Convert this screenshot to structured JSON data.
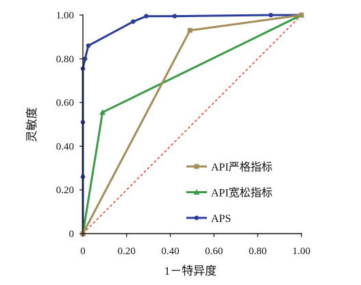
{
  "chart_data": {
    "type": "line",
    "xlabel": "1－特异度",
    "ylabel": "灵敏度",
    "xlim": [
      0,
      1
    ],
    "ylim": [
      0,
      1
    ],
    "x_tick_labels": [
      "0",
      "0.20",
      "0.40",
      "0.60",
      "0.80",
      "1.00"
    ],
    "y_tick_labels": [
      "0",
      "0.20",
      "0.40",
      "0.60",
      "0.80",
      "1.00"
    ],
    "grid": false,
    "legend_position": "bottom-right",
    "reference_line": {
      "x": [
        0,
        1
      ],
      "y": [
        0,
        1
      ],
      "style": "dashed",
      "color": "#e2513f"
    },
    "series": [
      {
        "name": "API严格指标",
        "color": "#a38d58",
        "marker": "square",
        "x": [
          0,
          0.49,
          1.0
        ],
        "y": [
          0,
          0.93,
          1.0
        ]
      },
      {
        "name": "API宽松指标",
        "color": "#3a9a45",
        "marker": "triangle",
        "x": [
          0,
          0.09,
          1.0
        ],
        "y": [
          0,
          0.555,
          1.0
        ]
      },
      {
        "name": "APS",
        "color": "#2b3d98",
        "marker": "circle",
        "x": [
          0,
          0,
          0,
          0,
          0.01,
          0.025,
          0.23,
          0.29,
          0.42,
          0.86,
          1.0
        ],
        "y": [
          0,
          0.26,
          0.51,
          0.755,
          0.8,
          0.86,
          0.97,
          0.995,
          0.995,
          1.0,
          1.0
        ]
      }
    ]
  }
}
